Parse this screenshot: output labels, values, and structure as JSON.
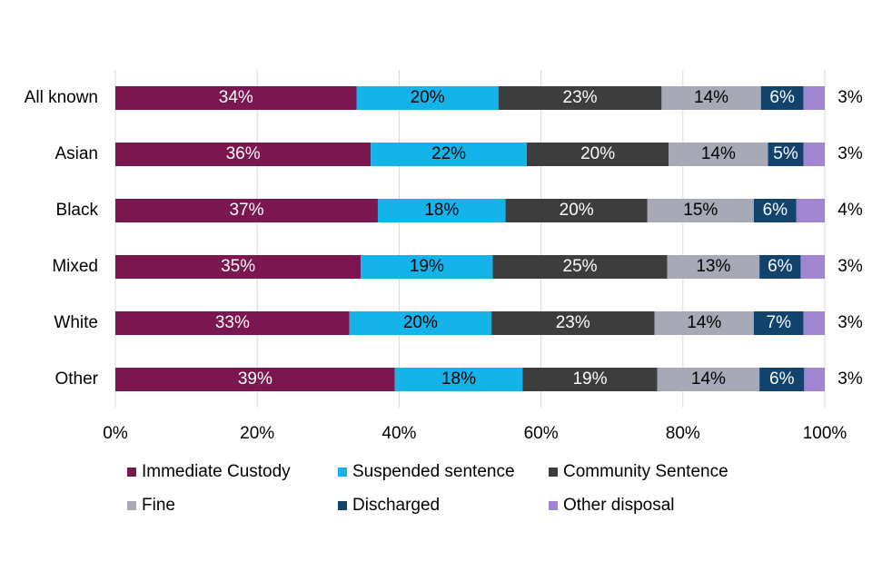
{
  "chart_data": {
    "type": "stacked-bar-horizontal",
    "categories": [
      "All known",
      "Asian",
      "Black",
      "Mixed",
      "White",
      "Other"
    ],
    "series": [
      {
        "name": "Immediate Custody",
        "color": "#7b1650",
        "label_color": "#ffffff",
        "values": [
          34,
          36,
          37,
          34.6,
          33,
          39.4
        ],
        "value_labels": [
          "34%",
          "36%",
          "37%",
          "35%",
          "33%",
          "39%"
        ]
      },
      {
        "name": "Suspended sentence",
        "color": "#14b4ea",
        "label_color": "#000000",
        "values": [
          20,
          22,
          18,
          18.6,
          20,
          18.0
        ],
        "value_labels": [
          "20%",
          "22%",
          "18%",
          "19%",
          "20%",
          "18%"
        ]
      },
      {
        "name": "Community Sentence",
        "color": "#3d3d3d",
        "label_color": "#ffffff",
        "values": [
          23,
          20,
          20,
          24.6,
          23,
          19.0
        ],
        "value_labels": [
          "23%",
          "20%",
          "20%",
          "25%",
          "23%",
          "19%"
        ]
      },
      {
        "name": "Fine",
        "color": "#a7aab6",
        "label_color": "#000000",
        "values": [
          14,
          14,
          15,
          13.0,
          14,
          14.4
        ],
        "value_labels": [
          "14%",
          "14%",
          "15%",
          "13%",
          "14%",
          "14%"
        ]
      },
      {
        "name": "Discharged",
        "color": "#12436d",
        "label_color": "#ffffff",
        "values": [
          6,
          5,
          6,
          5.8,
          7,
          6.3
        ],
        "value_labels": [
          "6%",
          "5%",
          "6%",
          "6%",
          "7%",
          "6%"
        ]
      },
      {
        "name": "Other disposal",
        "color": "#a285d1",
        "label_color": "#000000",
        "label_outside": true,
        "values": [
          3,
          3,
          4,
          3.4,
          3,
          2.9
        ],
        "value_labels": [
          "3%",
          "3%",
          "4%",
          "3%",
          "3%",
          "3%"
        ]
      }
    ],
    "xlim": [
      0,
      100
    ],
    "xticks": [
      {
        "value": 0,
        "label": "0%"
      },
      {
        "value": 20,
        "label": "20%"
      },
      {
        "value": 40,
        "label": "40%"
      },
      {
        "value": 60,
        "label": "60%"
      },
      {
        "value": 80,
        "label": "80%"
      },
      {
        "value": 100,
        "label": "100%"
      }
    ],
    "grid": true,
    "legend": "bottom"
  }
}
